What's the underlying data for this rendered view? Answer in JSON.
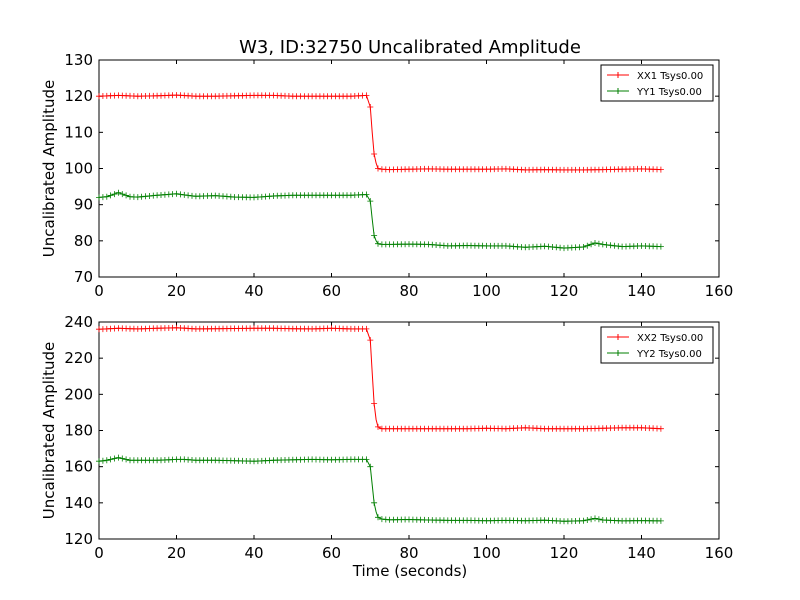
{
  "figure": {
    "title": "W3, ID:32750 Uncalibrated Amplitude",
    "xlabel": "Time (seconds)"
  },
  "colors": {
    "xx": "#ff0000",
    "yy": "#007f00"
  },
  "chart_data": [
    {
      "type": "line",
      "title": "W3, ID:32750 Uncalibrated Amplitude",
      "xlabel": "",
      "ylabel": "Uncalibrated Amplitude",
      "xlim": [
        0,
        160
      ],
      "ylim": [
        70,
        130
      ],
      "xticks": [
        0,
        20,
        40,
        60,
        80,
        100,
        120,
        140,
        160
      ],
      "yticks": [
        70,
        80,
        90,
        100,
        110,
        120,
        130
      ],
      "grid": false,
      "legend": "top-right",
      "marker": "+",
      "series": [
        {
          "name": "XX1 Tsys0.00",
          "color": "#ff0000",
          "x": [
            0,
            5,
            10,
            15,
            20,
            25,
            30,
            35,
            40,
            45,
            50,
            55,
            60,
            65,
            69,
            70,
            70.5,
            71,
            71.5,
            72,
            73,
            75,
            80,
            85,
            90,
            95,
            100,
            105,
            110,
            115,
            120,
            125,
            130,
            135,
            140,
            145
          ],
          "y": [
            120,
            120.2,
            120,
            120.1,
            120.3,
            120,
            120,
            120.1,
            120.2,
            120.2,
            120,
            120,
            120,
            120,
            120.2,
            117,
            110,
            104,
            101.5,
            100,
            99.8,
            99.7,
            99.8,
            99.9,
            99.8,
            99.8,
            99.8,
            99.9,
            99.6,
            99.7,
            99.6,
            99.6,
            99.7,
            99.8,
            99.9,
            99.7
          ]
        },
        {
          "name": "YY1 Tsys0.00",
          "color": "#007f00",
          "x": [
            0,
            2,
            5,
            8,
            10,
            15,
            20,
            22,
            25,
            30,
            35,
            40,
            45,
            50,
            55,
            60,
            65,
            69,
            70,
            70.5,
            71,
            71.5,
            72,
            73,
            75,
            80,
            85,
            90,
            95,
            100,
            105,
            110,
            115,
            120,
            125,
            128,
            130,
            135,
            140,
            145
          ],
          "y": [
            92,
            92.2,
            93.3,
            92.2,
            92.1,
            92.6,
            93,
            92.7,
            92.3,
            92.5,
            92.1,
            92,
            92.4,
            92.6,
            92.6,
            92.6,
            92.6,
            92.8,
            91,
            86,
            81.5,
            80,
            79.2,
            79,
            79,
            79.1,
            79,
            78.6,
            78.7,
            78.6,
            78.6,
            78.2,
            78.5,
            78,
            78.3,
            79.4,
            79,
            78.4,
            78.6,
            78.4
          ]
        }
      ]
    },
    {
      "type": "line",
      "title": "",
      "xlabel": "Time (seconds)",
      "ylabel": "Uncalibrated Amplitude",
      "xlim": [
        0,
        160
      ],
      "ylim": [
        120,
        240
      ],
      "xticks": [
        0,
        20,
        40,
        60,
        80,
        100,
        120,
        140,
        160
      ],
      "yticks": [
        120,
        140,
        160,
        180,
        200,
        220,
        240
      ],
      "grid": false,
      "legend": "top-right",
      "marker": "+",
      "series": [
        {
          "name": "XX2 Tsys0.00",
          "color": "#ff0000",
          "x": [
            0,
            5,
            10,
            15,
            20,
            25,
            30,
            35,
            40,
            45,
            50,
            55,
            60,
            65,
            69,
            70,
            70.5,
            71,
            71.5,
            72,
            73,
            75,
            80,
            85,
            90,
            95,
            100,
            105,
            110,
            115,
            120,
            125,
            130,
            135,
            140,
            145
          ],
          "y": [
            236,
            236.5,
            236.2,
            236.5,
            236.8,
            236.2,
            236.3,
            236.4,
            236.5,
            236.5,
            236.3,
            236.2,
            236.5,
            236.2,
            236.2,
            230,
            212,
            195,
            186,
            182,
            181,
            181,
            181,
            181,
            181,
            181,
            181.2,
            181,
            181.5,
            181,
            181,
            181,
            181.2,
            181.5,
            181.5,
            181
          ]
        },
        {
          "name": "YY2 Tsys0.00",
          "color": "#007f00",
          "x": [
            0,
            2,
            5,
            8,
            10,
            15,
            20,
            22,
            25,
            30,
            35,
            40,
            45,
            50,
            55,
            60,
            65,
            69,
            70,
            70.5,
            71,
            71.5,
            72,
            73,
            75,
            80,
            85,
            90,
            95,
            100,
            105,
            110,
            115,
            120,
            125,
            128,
            130,
            135,
            140,
            145
          ],
          "y": [
            163,
            163.5,
            165,
            163.5,
            163.5,
            163.5,
            164,
            164,
            163.5,
            163.5,
            163.3,
            163,
            163.5,
            163.8,
            164,
            163.8,
            164,
            164,
            160,
            150,
            140,
            135,
            132,
            131,
            130.6,
            130.8,
            130.5,
            130.3,
            130.3,
            130.1,
            130.3,
            130.1,
            130.4,
            129.8,
            130.1,
            131.4,
            130.5,
            130,
            130.2,
            130
          ]
        }
      ]
    }
  ]
}
